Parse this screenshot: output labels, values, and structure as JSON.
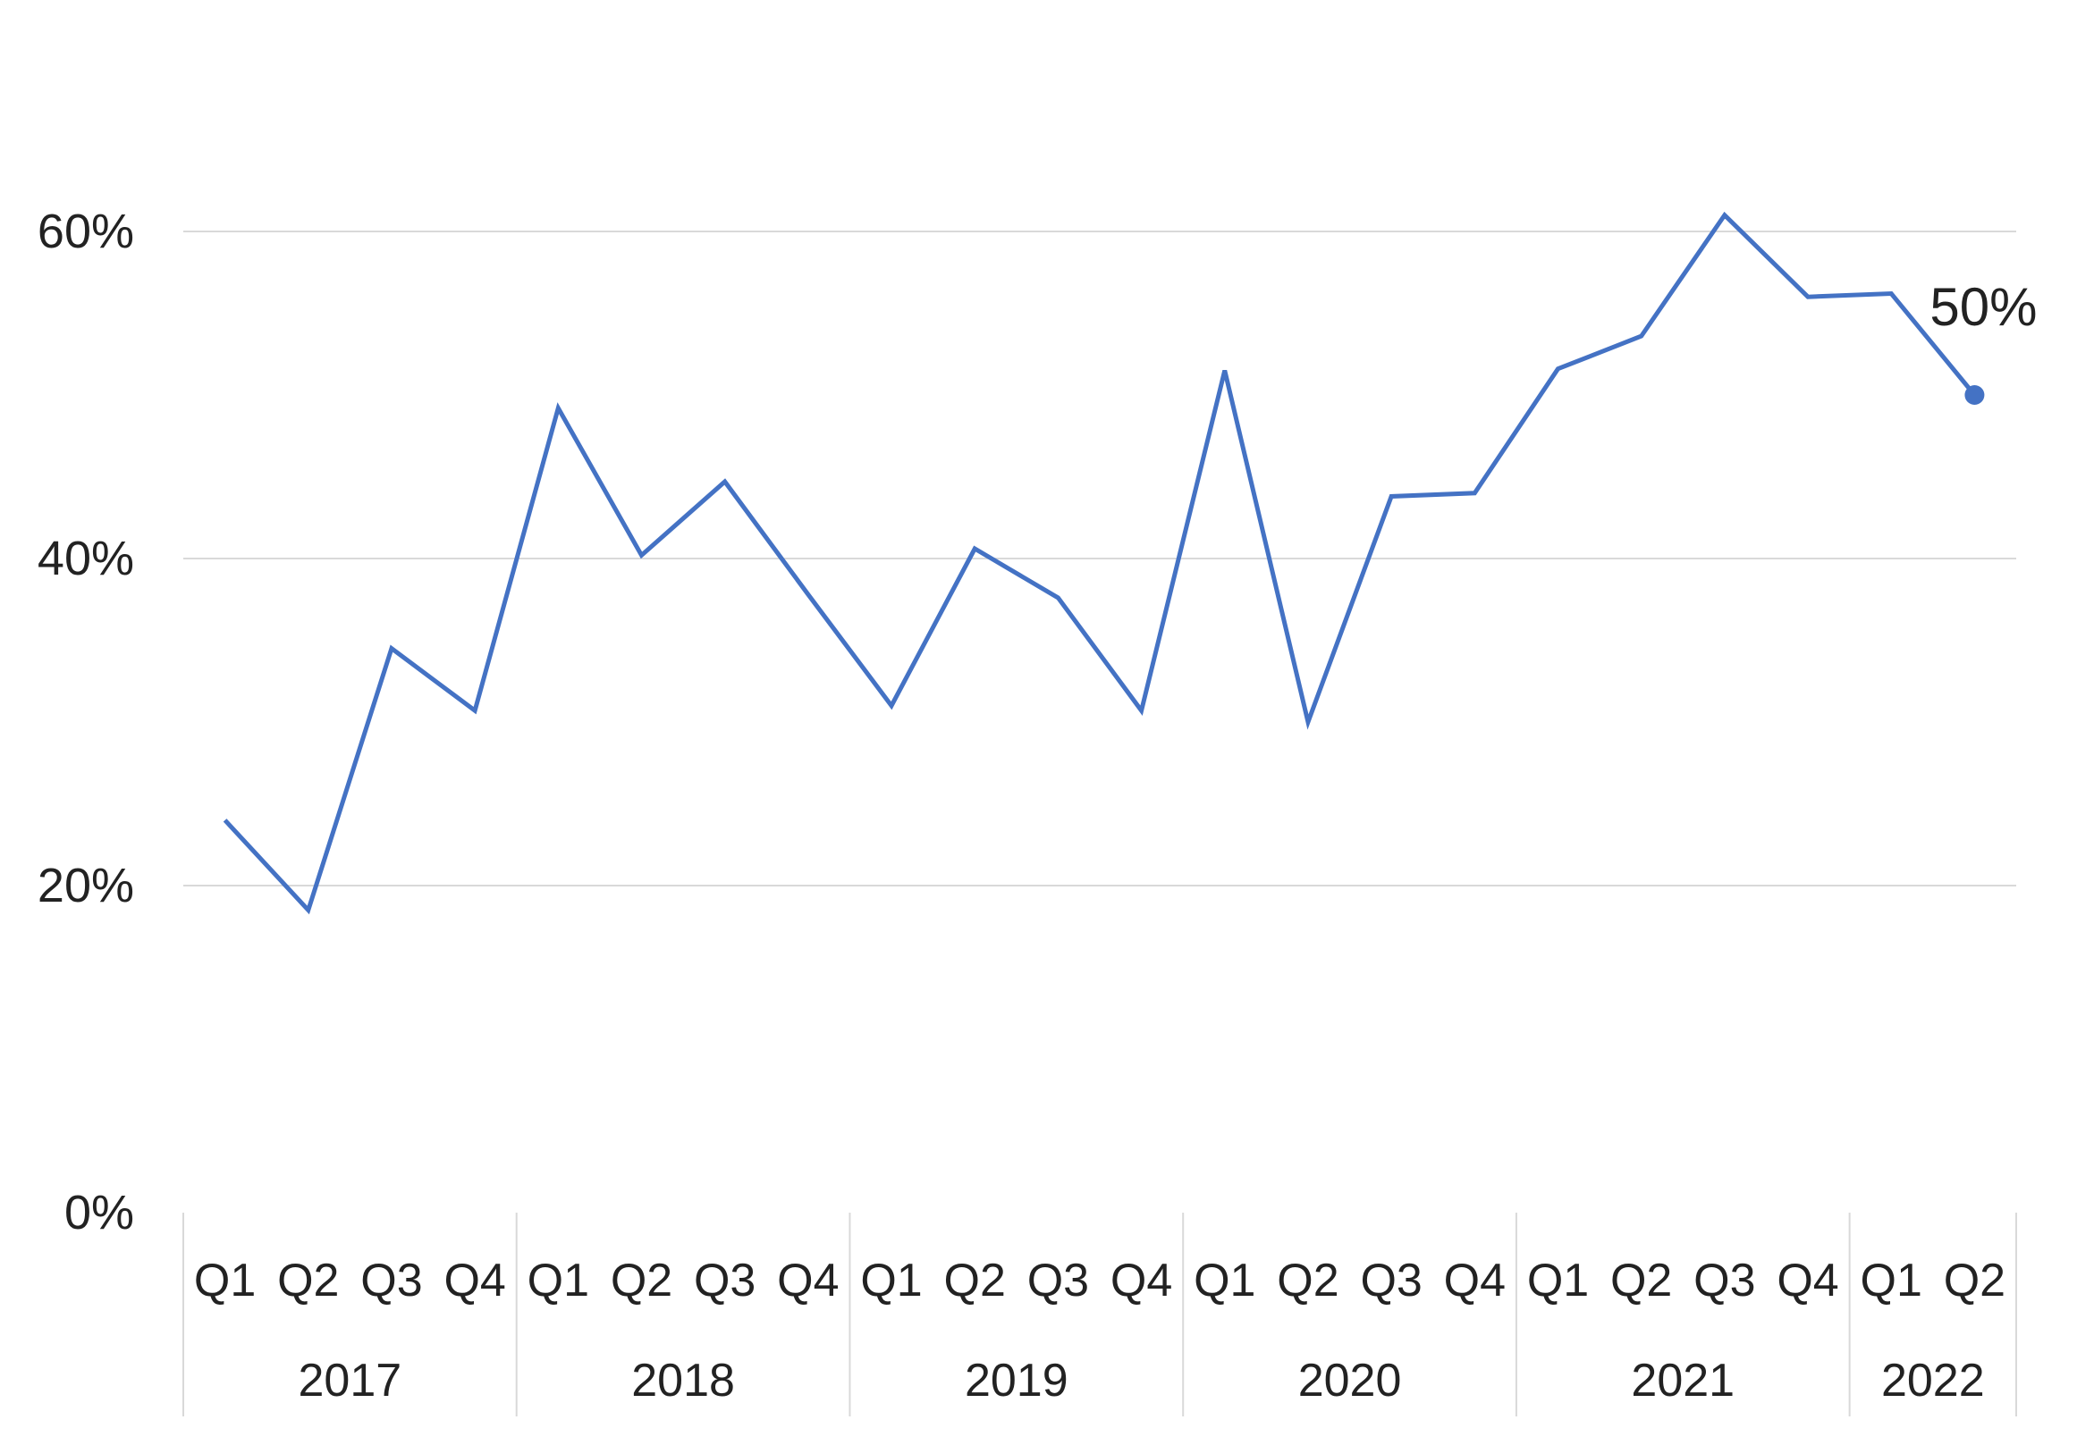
{
  "chart_data": {
    "type": "line",
    "title": "",
    "xlabel": "",
    "ylabel": "",
    "ylim": [
      0,
      0.6
    ],
    "y_ticks": [
      {
        "value": 0,
        "label": "0%"
      },
      {
        "value": 0.2,
        "label": "20%"
      },
      {
        "value": 0.4,
        "label": "40%"
      },
      {
        "value": 0.6,
        "label": "60%"
      }
    ],
    "grid": true,
    "legend": "none",
    "line_color": "#4472C4",
    "gridline_color": "#D9D9D9",
    "categories": [
      "Q1",
      "Q2",
      "Q3",
      "Q4",
      "Q1",
      "Q2",
      "Q3",
      "Q4",
      "Q1",
      "Q2",
      "Q3",
      "Q4",
      "Q1",
      "Q2",
      "Q3",
      "Q4",
      "Q1",
      "Q2",
      "Q3",
      "Q4",
      "Q1",
      "Q2"
    ],
    "groups": [
      {
        "label": "2017",
        "count": 4
      },
      {
        "label": "2018",
        "count": 4
      },
      {
        "label": "2019",
        "count": 4
      },
      {
        "label": "2020",
        "count": 4
      },
      {
        "label": "2021",
        "count": 4
      },
      {
        "label": "2022",
        "count": 2
      }
    ],
    "series": [
      {
        "values": [
          0.24,
          0.185,
          0.345,
          0.307,
          0.492,
          0.402,
          0.447,
          0.378,
          0.31,
          0.406,
          0.376,
          0.307,
          0.515,
          0.3,
          0.438,
          0.44,
          0.516,
          0.536,
          0.61,
          0.56,
          0.562,
          0.5
        ]
      }
    ],
    "annotations": [
      {
        "index": 21,
        "label": "50%"
      }
    ]
  }
}
